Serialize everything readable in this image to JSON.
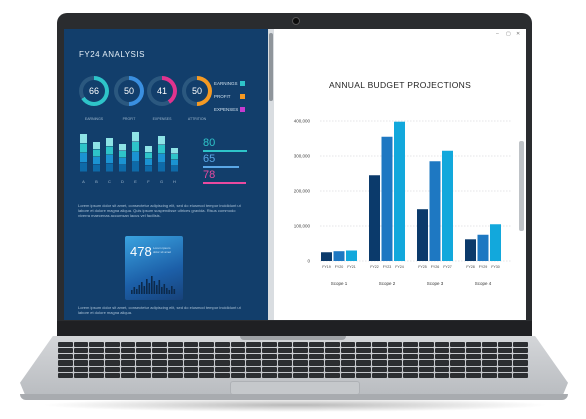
{
  "dashboard": {
    "title": "FY24 ANALYSIS",
    "gauges": [
      {
        "value": "66",
        "label": "EARNINGS",
        "color": "#2ec4c9"
      },
      {
        "value": "50",
        "label": "PROFIT",
        "color": "#3a8fe0"
      },
      {
        "value": "41",
        "label": "EXPENSES",
        "color": "#e0338e"
      },
      {
        "value": "50",
        "label": "ATTRITION",
        "color": "#f59a23"
      }
    ],
    "legend": [
      {
        "label": "EARNINGS",
        "color": "#2ec4c9"
      },
      {
        "label": "PROFIT",
        "color": "#f59a23"
      },
      {
        "label": "EXPENSES",
        "color": "#c63bd0"
      }
    ],
    "bar_letters": [
      "A",
      "B",
      "C",
      "D",
      "E",
      "F",
      "G",
      "H"
    ],
    "metrics": [
      {
        "value": "80",
        "color": "#2ec4c9"
      },
      {
        "value": "65",
        "color": "#5aa7e6"
      },
      {
        "value": "78",
        "color": "#e94aa0"
      }
    ],
    "paragraph1": "Lorem ipsum dolor sit amet, consectetur adipiscing elit, sed do eiusmod tempor incididunt ut labore et dolore magna aliqua. Quis ipsum suspendisse ultrices gravida. Risus commodo viverra maecenas accumsan lacus vel facilisis.",
    "tile": {
      "number": "478",
      "caption": "Lorem ipsum dolor sit amet"
    },
    "paragraph2": "Lorem ipsum dolor sit amet, consectetur adipiscing elit, sed do eiusmod tempor incididunt ut labore et dolore magna aliqua."
  },
  "window_controls": [
    "–",
    "▢",
    "✕"
  ],
  "chart_data": {
    "type": "bar",
    "title": "ANNUAL BUDGET PROJECTIONS",
    "ylim": [
      0,
      400000
    ],
    "yticks": [
      "0",
      "100,000",
      "200,000",
      "300,000",
      "400,000"
    ],
    "groups": [
      {
        "name": "Scope 1",
        "labels": [
          "FY19",
          "FY20",
          "FY21"
        ],
        "values": [
          25000,
          28000,
          30000
        ]
      },
      {
        "name": "Scope 2",
        "labels": [
          "FY22",
          "FY23",
          "FY24"
        ],
        "values": [
          245000,
          355000,
          398000
        ]
      },
      {
        "name": "Scope 3",
        "labels": [
          "FY25",
          "FY26",
          "FY27"
        ],
        "values": [
          148000,
          285000,
          315000
        ]
      },
      {
        "name": "Scope 4",
        "labels": [
          "FY28",
          "FY29",
          "FY30"
        ],
        "values": [
          62000,
          75000,
          105000
        ]
      }
    ],
    "colors": [
      "#0b3a6b",
      "#1e78c2",
      "#12a8dc"
    ],
    "grid": true
  }
}
